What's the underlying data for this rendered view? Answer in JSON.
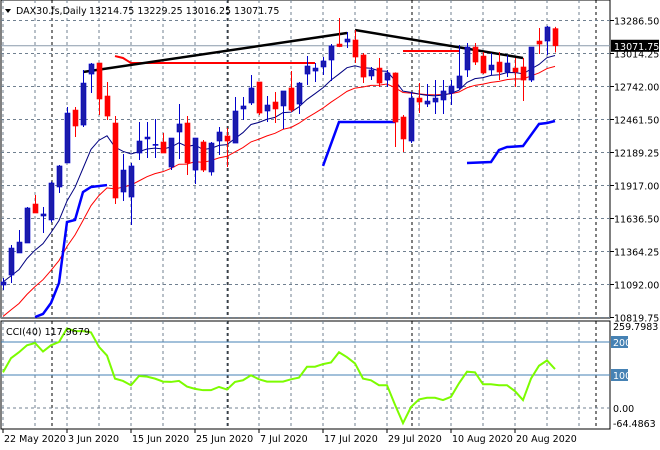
{
  "header": {
    "symbol": "DAX30.fs,Daily",
    "ohlc": "13214.75 13229.25 13016.25 13071.75"
  },
  "cci_label": "CCI(40) 117.9679",
  "current_price_label": "13071.75",
  "colors": {
    "bull": "#1b1baa",
    "bear": "#ff0000",
    "ma_fast": "#000080",
    "ma_slow": "#ff0000",
    "stepped_line": "#0000ff",
    "trendline": "#000000",
    "level_line": "#ff0000",
    "cci": "#7cfc00",
    "cci_levels": "#4682b4",
    "grid": "#708090"
  },
  "chart_data": [
    {
      "type": "candlestick",
      "title": "DAX30.fs,Daily",
      "ylim": [
        10819.75,
        13286.5
      ],
      "y_ticks": [
        "13286.50",
        "13014.25",
        "12742.00",
        "12461.50",
        "12189.25",
        "11917.00",
        "11636.50",
        "11364.25",
        "11092.00",
        "10819.75"
      ],
      "x_ticks": [
        {
          "date": "2020-05-22",
          "label": "22 May 2020"
        },
        {
          "date": "2020-06-03",
          "label": "3 Jun 2020"
        },
        {
          "date": "2020-06-15",
          "label": "15 Jun 2020"
        },
        {
          "date": "2020-06-25",
          "label": "25 Jun 2020"
        },
        {
          "date": "2020-07-07",
          "label": "7 Jul 2020"
        },
        {
          "date": "2020-07-17",
          "label": "17 Jul 2020"
        },
        {
          "date": "2020-07-29",
          "label": "29 Jul 2020"
        },
        {
          "date": "2020-08-10",
          "label": "10 Aug 2020"
        },
        {
          "date": "2020-08-20",
          "label": "20 Aug 2020"
        }
      ],
      "grid": true,
      "candles_columns": [
        "date",
        "open",
        "high",
        "low",
        "close"
      ],
      "candles": [
        [
          "2020-05-22",
          11078,
          11136,
          11036,
          11103
        ],
        [
          "2020-05-25",
          11161,
          11411,
          11095,
          11386
        ],
        [
          "2020-05-26",
          11345,
          11536,
          11345,
          11436
        ],
        [
          "2020-05-27",
          11428,
          11728,
          11428,
          11720
        ],
        [
          "2020-05-28",
          11753,
          11828,
          11678,
          11678
        ],
        [
          "2020-05-29",
          11653,
          11728,
          11511,
          11670
        ],
        [
          "2020-06-01",
          11620,
          11940,
          11600,
          11928
        ],
        [
          "2020-06-02",
          11895,
          12078,
          11845,
          12070
        ],
        [
          "2020-06-03",
          12095,
          12561,
          12095,
          12511
        ],
        [
          "2020-06-04",
          12536,
          12561,
          12311,
          12403
        ],
        [
          "2020-06-05",
          12411,
          12870,
          12395,
          12761
        ],
        [
          "2020-06-08",
          12836,
          12928,
          12678,
          12920
        ],
        [
          "2020-06-09",
          12928,
          12928,
          12495,
          12628
        ],
        [
          "2020-06-10",
          12653,
          12770,
          12453,
          12486
        ],
        [
          "2020-06-11",
          12428,
          12486,
          11753,
          11803
        ],
        [
          "2020-06-12",
          11853,
          12170,
          11778,
          12036
        ],
        [
          "2020-06-15",
          11811,
          12095,
          11578,
          12070
        ],
        [
          "2020-06-16",
          12178,
          12436,
          12120,
          12278
        ],
        [
          "2020-06-17",
          12295,
          12436,
          12136,
          12311
        ],
        [
          "2020-06-18",
          12245,
          12461,
          12136,
          12250
        ],
        [
          "2020-06-19",
          12270,
          12345,
          12178,
          12178
        ],
        [
          "2020-06-22",
          12061,
          12303,
          12036,
          12303
        ],
        [
          "2020-06-23",
          12353,
          12586,
          12128,
          12420
        ],
        [
          "2020-06-24",
          12428,
          12486,
          11995,
          12095
        ],
        [
          "2020-06-25",
          12036,
          12303,
          11920,
          12303
        ],
        [
          "2020-06-26",
          12270,
          12286,
          12020,
          12036
        ],
        [
          "2020-06-29",
          12020,
          12270,
          11990,
          12261
        ],
        [
          "2020-06-30",
          12278,
          12395,
          12161,
          12353
        ],
        [
          "2020-07-01",
          12320,
          12386,
          12061,
          12278
        ],
        [
          "2020-07-02",
          12261,
          12645,
          12261,
          12528
        ],
        [
          "2020-07-03",
          12545,
          12645,
          12453,
          12570
        ],
        [
          "2020-07-06",
          12595,
          12828,
          12578,
          12720
        ],
        [
          "2020-07-07",
          12770,
          12770,
          12495,
          12511
        ],
        [
          "2020-07-08",
          12528,
          12653,
          12436,
          12578
        ],
        [
          "2020-07-09",
          12603,
          12686,
          12428,
          12545
        ],
        [
          "2020-07-10",
          12570,
          12695,
          12378,
          12695
        ],
        [
          "2020-07-13",
          12720,
          12861,
          12520,
          12536
        ],
        [
          "2020-07-14",
          12586,
          12770,
          12503,
          12761
        ],
        [
          "2020-07-15",
          12836,
          12986,
          12745,
          12903
        ],
        [
          "2020-07-16",
          12861,
          12928,
          12770,
          12886
        ],
        [
          "2020-07-17",
          12895,
          12978,
          12828,
          12945
        ],
        [
          "2020-07-20",
          12953,
          13086,
          12778,
          13070
        ],
        [
          "2020-07-21",
          13086,
          13303,
          13060,
          13065
        ],
        [
          "2020-07-22",
          13103,
          13186,
          13053,
          13128
        ],
        [
          "2020-07-23",
          13120,
          13203,
          12928,
          12978
        ],
        [
          "2020-07-24",
          12995,
          13011,
          12761,
          12811
        ],
        [
          "2020-07-27",
          12820,
          12895,
          12786,
          12870
        ],
        [
          "2020-07-28",
          12886,
          12970,
          12728,
          12761
        ],
        [
          "2020-07-29",
          12786,
          12870,
          12728,
          12845
        ],
        [
          "2020-07-30",
          12845,
          12850,
          12228,
          12436
        ],
        [
          "2020-07-31",
          12478,
          12495,
          12186,
          12295
        ],
        [
          "2020-08-03",
          12278,
          12686,
          12261,
          12636
        ],
        [
          "2020-08-04",
          12636,
          12761,
          12511,
          12603
        ],
        [
          "2020-08-05",
          12586,
          12753,
          12561,
          12611
        ],
        [
          "2020-08-06",
          12603,
          12786,
          12503,
          12636
        ],
        [
          "2020-08-07",
          12620,
          12786,
          12503,
          12695
        ],
        [
          "2020-08-10",
          12678,
          12786,
          12578,
          12736
        ],
        [
          "2020-08-11",
          12720,
          13078,
          12703,
          12820
        ],
        [
          "2020-08-12",
          12870,
          13095,
          12811,
          13061
        ],
        [
          "2020-08-13",
          13061,
          13095,
          12911,
          12936
        ],
        [
          "2020-08-14",
          12986,
          13020,
          12836,
          12845
        ],
        [
          "2020-08-17",
          12870,
          13011,
          12828,
          12911
        ],
        [
          "2020-08-18",
          12936,
          13020,
          12786,
          12853
        ],
        [
          "2020-08-19",
          12853,
          12995,
          12811,
          12928
        ],
        [
          "2020-08-20",
          12886,
          12970,
          12728,
          12853
        ],
        [
          "2020-08-21",
          12895,
          12970,
          12611,
          12786
        ],
        [
          "2020-08-24",
          12786,
          13061,
          12770,
          13061
        ],
        [
          "2020-08-25",
          13111,
          13220,
          13003,
          13086
        ],
        [
          "2020-08-26",
          13111,
          13236,
          12995,
          13228
        ],
        [
          "2020-08-27",
          13214.75,
          13229.25,
          13016.25,
          13071.75
        ]
      ],
      "current_price": 13071.75,
      "overlays": {
        "stepped_line": [
          [
            [
              "2020-05-28",
              10811
            ],
            [
              "2020-05-29",
              10837
            ],
            [
              "2020-06-01",
              10928
            ],
            [
              "2020-06-02",
              11095
            ],
            [
              "2020-06-03",
              11603
            ],
            [
              "2020-06-04",
              11620
            ],
            [
              "2020-06-05",
              11853
            ],
            [
              "2020-06-08",
              11895
            ],
            [
              "2020-06-10",
              11911
            ]
          ],
          [
            [
              "2020-07-17",
              12070
            ],
            [
              "2020-07-21",
              12436
            ],
            [
              "2020-07-30",
              12436
            ]
          ],
          [
            [
              "2020-08-12",
              12095
            ],
            [
              "2020-08-17",
              12103
            ],
            [
              "2020-08-18",
              12203
            ],
            [
              "2020-08-19",
              12228
            ],
            [
              "2020-08-21",
              12236
            ],
            [
              "2020-08-25",
              12420
            ],
            [
              "2020-08-26",
              12428
            ],
            [
              "2020-08-27",
              12445
            ]
          ]
        ],
        "trendlines": [
          [
            [
              "2020-06-05",
              12853
            ],
            [
              "2020-07-22",
              13178
            ]
          ],
          [
            [
              "2020-07-23",
              13203
            ],
            [
              "2020-08-21",
              12970
            ]
          ]
        ],
        "level_lines": [
          [
            [
              "2020-06-11",
              12986
            ],
            [
              "2020-06-12",
              12970
            ],
            [
              "2020-06-15",
              12928
            ],
            [
              "2020-07-16",
              12928
            ]
          ],
          [
            [
              "2020-07-31",
              13028
            ],
            [
              "2020-08-11",
              13028
            ]
          ]
        ]
      }
    },
    {
      "type": "line",
      "title": "CCI(40) 117.9679",
      "ylim": [
        -64.4863,
        259.7983
      ],
      "y_ticks": [
        "259.7983",
        "200",
        "100",
        "0.00",
        "-64.4863"
      ],
      "levels": [
        200,
        100
      ],
      "zero_line": 0,
      "values": [
        108,
        151,
        169,
        190,
        197,
        171,
        190,
        200,
        241,
        233,
        233,
        229,
        185,
        159,
        89,
        82,
        69,
        97,
        95,
        89,
        80,
        79,
        82,
        65,
        58,
        54,
        54,
        64,
        56,
        79,
        84,
        99,
        87,
        80,
        80,
        80,
        87,
        92,
        125,
        125,
        133,
        138,
        169,
        154,
        135,
        89,
        84,
        69,
        69,
        10,
        -46,
        3,
        26,
        31,
        31,
        24,
        34,
        75,
        110,
        108,
        72,
        72,
        69,
        69,
        51,
        24,
        89,
        128,
        144,
        117.9679
      ]
    }
  ]
}
